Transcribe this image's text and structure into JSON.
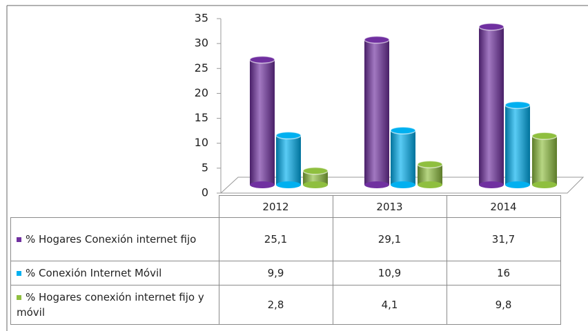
{
  "chart_data": {
    "type": "bar",
    "categories": [
      "2012",
      "2013",
      "2014"
    ],
    "series": [
      {
        "name": "% Hogares Conexión internet fijo",
        "color": "#7030a0",
        "values": [
          25.1,
          29.1,
          31.7
        ],
        "value_labels": [
          "25,1",
          "29,1",
          "31,7"
        ]
      },
      {
        "name": "% Conexión Internet Móvil",
        "color": "#00b0f0",
        "values": [
          9.9,
          10.9,
          16
        ],
        "value_labels": [
          "9,9",
          "10,9",
          "16"
        ]
      },
      {
        "name": "% Hogares conexión internet fijo y móvil",
        "color": "#8fbf3f",
        "values": [
          2.8,
          4.1,
          9.8
        ],
        "value_labels": [
          "2,8",
          "4,1",
          "9,8"
        ]
      }
    ],
    "ylim": [
      0,
      35
    ],
    "yticks": [
      0,
      5,
      10,
      15,
      20,
      25,
      30,
      35
    ]
  }
}
